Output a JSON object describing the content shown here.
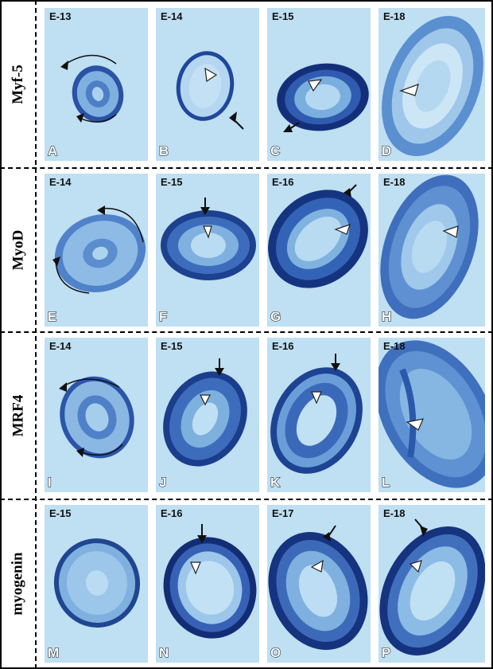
{
  "rows": [
    {
      "label": "Myf-5",
      "panels": [
        {
          "stage": "E-13",
          "letter": "A"
        },
        {
          "stage": "E-14",
          "letter": "B"
        },
        {
          "stage": "E-15",
          "letter": "C"
        },
        {
          "stage": "E-18",
          "letter": "D"
        }
      ]
    },
    {
      "label": "MyoD",
      "panels": [
        {
          "stage": "E-14",
          "letter": "E"
        },
        {
          "stage": "E-15",
          "letter": "F"
        },
        {
          "stage": "E-16",
          "letter": "G"
        },
        {
          "stage": "E-18",
          "letter": "H"
        }
      ]
    },
    {
      "label": "MRF4",
      "panels": [
        {
          "stage": "E-14",
          "letter": "I"
        },
        {
          "stage": "E-15",
          "letter": "J"
        },
        {
          "stage": "E-16",
          "letter": "K"
        },
        {
          "stage": "E-18",
          "letter": "L"
        }
      ]
    },
    {
      "label": "myogenin",
      "panels": [
        {
          "stage": "E-15",
          "letter": "M"
        },
        {
          "stage": "E-16",
          "letter": "N"
        },
        {
          "stage": "E-17",
          "letter": "O"
        },
        {
          "stage": "E-18",
          "letter": "P"
        }
      ]
    }
  ],
  "colors": {
    "background": "#bfdff2",
    "stain_dark": "#1a3f8f",
    "stain_mid": "#3f6fbe",
    "stain_light": "#8cb8e3",
    "lumen": "#b9dcf2"
  }
}
